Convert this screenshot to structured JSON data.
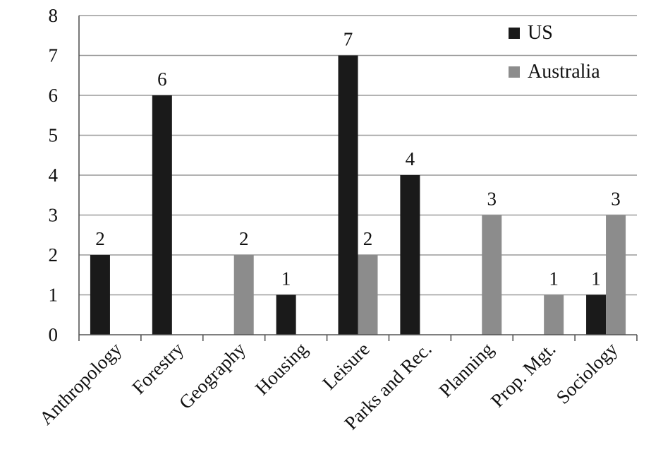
{
  "chart_data": {
    "type": "bar",
    "categories": [
      "Anthropology",
      "Forestry",
      "Geography",
      "Housing",
      "Leisure",
      "Parks and Rec.",
      "Planning",
      "Prop. Mgt.",
      "Sociology"
    ],
    "series": [
      {
        "name": "US",
        "values": [
          2,
          6,
          0,
          1,
          7,
          4,
          0,
          0,
          1
        ],
        "labels": [
          "2",
          "6",
          "",
          "1",
          "7",
          "4",
          "",
          "",
          "1"
        ],
        "color": "#1a1a1a"
      },
      {
        "name": "Australia",
        "values": [
          0,
          0,
          2,
          0,
          2,
          0,
          3,
          1,
          3
        ],
        "labels": [
          "",
          "",
          "2",
          "",
          "2",
          "",
          "3",
          "1",
          "3"
        ],
        "color": "#8c8c8c"
      }
    ],
    "yticks": [
      "0",
      "1",
      "2",
      "3",
      "4",
      "5",
      "6",
      "7",
      "8"
    ],
    "ylim": [
      0,
      8
    ],
    "grid": true,
    "legend_position": "top-right",
    "title": "",
    "xlabel": "",
    "ylabel": ""
  }
}
